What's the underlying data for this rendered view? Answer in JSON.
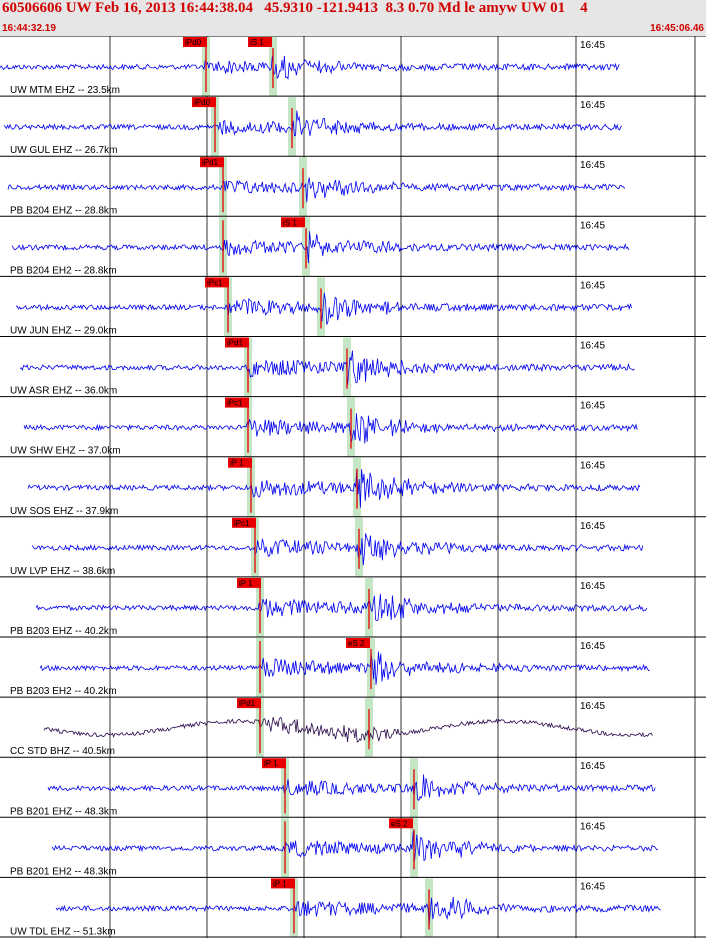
{
  "header": {
    "title": "60506606 UW Feb 16, 2013 16:44:38.04   45.9310 -121.9413  8.3 0.70 Md le amyw UW 01    4",
    "start_time": "16:44:32.19",
    "end_time": "16:45:06.46"
  },
  "colors": {
    "trace": "#0000ee",
    "trace_bb": "#2a0a4a",
    "pick_box": "#e80000",
    "window": "#c4e6c4",
    "header_text": "#d10000"
  },
  "chart_data": {
    "type": "seismogram",
    "x_range": [
      "16:44:32.19",
      "16:45:06.46"
    ],
    "tick_label": "16:45",
    "traces": [
      {
        "label": "UW MTM EHZ -- 23.5km",
        "pick_label": "iPd0",
        "p": 205,
        "s": 272,
        "pick2_label": "iS 1",
        "amp": 0.55
      },
      {
        "label": "UW GUL EHZ -- 26.7km",
        "pick_label": "iPd0",
        "p": 214,
        "s": 291,
        "pick2_label": "",
        "amp": 0.6
      },
      {
        "label": "PB B204 EHZ -- 28.8km",
        "pick_label": "iPd1",
        "p": 222,
        "s": 302,
        "pick2_label": "",
        "amp": 0.6
      },
      {
        "label": "PB B204 EH2 -- 28.8km",
        "pick_label": "",
        "p": 222,
        "s": 305,
        "pick2_label": "iS 1",
        "amp": 0.65
      },
      {
        "label": "UW JUN EHZ -- 29.0km",
        "pick_label": "iPc1",
        "p": 227,
        "s": 320,
        "pick2_label": "",
        "amp": 0.8
      },
      {
        "label": "UW ASR EHZ -- 36.0km",
        "pick_label": "iPd1",
        "p": 247,
        "s": 346,
        "pick2_label": "",
        "amp": 0.8
      },
      {
        "label": "UW SHW EHZ -- 37.0km",
        "pick_label": "iPc1",
        "p": 247,
        "s": 350,
        "pick2_label": "",
        "amp": 0.8
      },
      {
        "label": "UW SOS EHZ -- 37.9km",
        "pick_label": "iP 1",
        "p": 250,
        "s": 356,
        "pick2_label": "",
        "amp": 0.85
      },
      {
        "label": "UW LVP EHZ -- 38.6km",
        "pick_label": "iPc1",
        "p": 254,
        "s": 358,
        "pick2_label": "",
        "amp": 0.8
      },
      {
        "label": "PB B203 EHZ -- 40.2km",
        "pick_label": "iP 1",
        "p": 259,
        "s": 368,
        "pick2_label": "",
        "amp": 0.85
      },
      {
        "label": "PB B203 EH2 -- 40.2km",
        "pick_label": "",
        "p": 259,
        "s": 370,
        "pick2_label": "eS 2",
        "amp": 0.85
      },
      {
        "label": "CC STD BHZ -- 40.5km",
        "pick_label": "iPd1",
        "p": 259,
        "s": 368,
        "pick2_label": "",
        "amp": 0.9
      },
      {
        "label": "PB B201 EHZ -- 48.3km",
        "pick_label": "iP 1",
        "p": 284,
        "s": 413,
        "pick2_label": "",
        "amp": 0.7
      },
      {
        "label": "PB B201 EH2 -- 48.3km",
        "pick_label": "",
        "p": 284,
        "s": 413,
        "pick2_label": "eS 2",
        "amp": 0.75
      },
      {
        "label": "UW TDL EHZ -- 51.3km",
        "pick_label": "iP 1",
        "p": 293,
        "s": 428,
        "pick2_label": "",
        "amp": 0.75
      }
    ]
  }
}
